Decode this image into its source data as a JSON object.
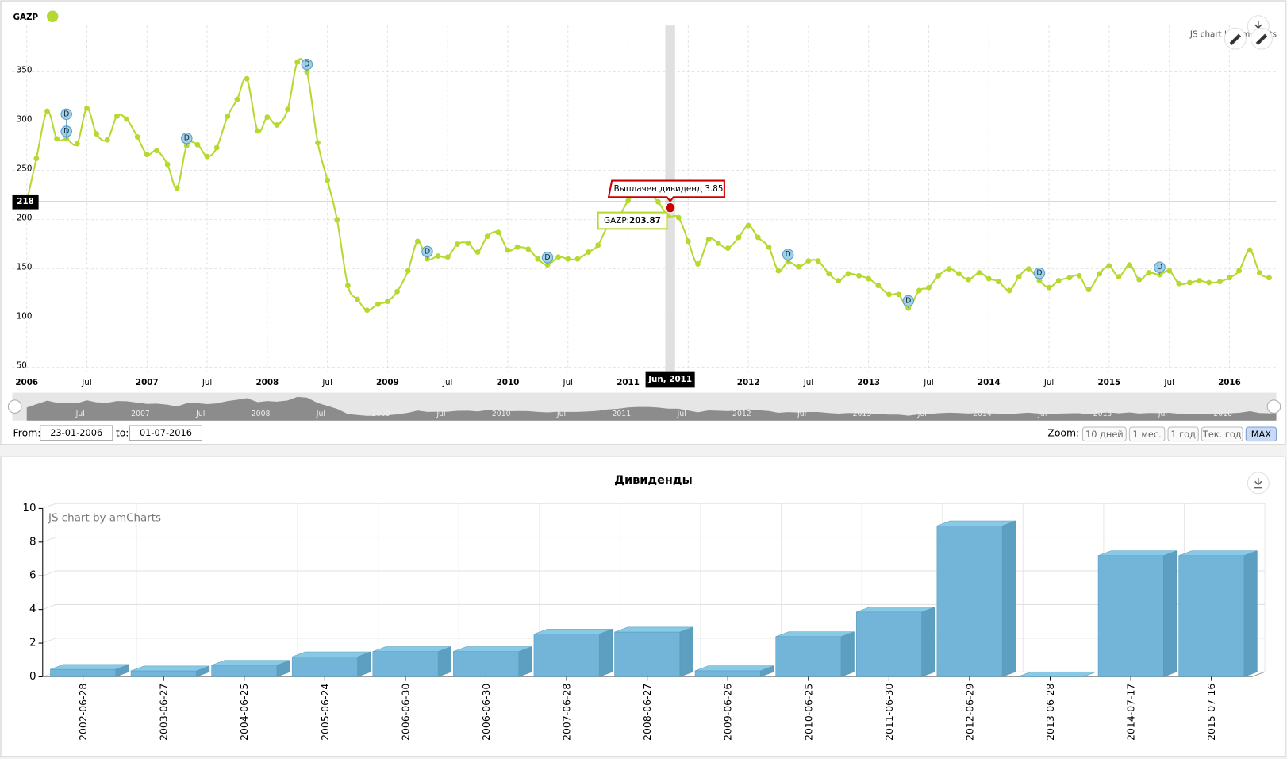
{
  "chart_data": [
    {
      "type": "line",
      "series": [
        {
          "name": "GAZP",
          "color": "#b5d930",
          "values": [
            218,
            262,
            310,
            282,
            282,
            277,
            313,
            287,
            281,
            305,
            302,
            284,
            266,
            270,
            256,
            232,
            275,
            276,
            264,
            273,
            305,
            322,
            343,
            290,
            304,
            296,
            312,
            360,
            350,
            278,
            240,
            200,
            133,
            119,
            108,
            114,
            117,
            127,
            148,
            178,
            160,
            163,
            162,
            175,
            176,
            167,
            183,
            187,
            169,
            172,
            170,
            160,
            154,
            162,
            160,
            160,
            167,
            174,
            193,
            202,
            219,
            226,
            226,
            218,
            203.87,
            202,
            178,
            155,
            180,
            176,
            171,
            182,
            194,
            182,
            172,
            148,
            157,
            152,
            158,
            158,
            145,
            138,
            145,
            143,
            140,
            133,
            124,
            124,
            110,
            128,
            131,
            143,
            150,
            145,
            139,
            146,
            140,
            137,
            128,
            142,
            150,
            138,
            131,
            138,
            141,
            143,
            129,
            145,
            153,
            142,
            154,
            139,
            146,
            144,
            148,
            135,
            136,
            138,
            136,
            137,
            141,
            148,
            169,
            146,
            141
          ]
        }
      ],
      "x": [
        2006,
        2006.08,
        2006.17,
        2006.25,
        2006.33,
        2006.42,
        2006.5,
        2006.58,
        2006.67,
        2006.75,
        2006.83,
        2006.92,
        2007,
        2007.08,
        2007.17,
        2007.25,
        2007.33,
        2007.42,
        2007.5,
        2007.58,
        2007.67,
        2007.75,
        2007.83,
        2007.92,
        2008,
        2008.08,
        2008.17,
        2008.25,
        2008.33,
        2008.42,
        2008.5,
        2008.58,
        2008.67,
        2008.75,
        2008.83,
        2008.92,
        2009,
        2009.08,
        2009.17,
        2009.25,
        2009.33,
        2009.42,
        2009.5,
        2009.58,
        2009.67,
        2009.75,
        2009.83,
        2009.92,
        2010,
        2010.08,
        2010.17,
        2010.25,
        2010.33,
        2010.42,
        2010.5,
        2010.58,
        2010.67,
        2010.75,
        2010.83,
        2010.92,
        2011,
        2011.08,
        2011.17,
        2011.25,
        2011.33,
        2011.42,
        2011.5,
        2011.58,
        2011.67,
        2011.75,
        2011.83,
        2011.92,
        2012,
        2012.08,
        2012.17,
        2012.25,
        2012.33,
        2012.42,
        2012.5,
        2012.58,
        2012.67,
        2012.75,
        2012.83,
        2012.92,
        2013,
        2013.08,
        2013.17,
        2013.25,
        2013.33,
        2013.42,
        2013.5,
        2013.58,
        2013.67,
        2013.75,
        2013.83,
        2013.92,
        2014,
        2014.08,
        2014.17,
        2014.25,
        2014.33,
        2014.42,
        2014.5,
        2014.58,
        2014.67,
        2014.75,
        2014.83,
        2014.92,
        2015,
        2015.08,
        2015.17,
        2015.25,
        2015.33,
        2015.42,
        2015.5,
        2015.58,
        2015.67,
        2015.75,
        2015.83,
        2015.92,
        2016,
        2016.08,
        2016.17,
        2016.25,
        2016.33
      ],
      "xlim": [
        2005.88,
        2016.39
      ],
      "ylim": [
        46,
        397
      ],
      "yticks": [
        50,
        100,
        150,
        200,
        250,
        300,
        350
      ],
      "xticks": [
        2006,
        {
          "value": 2006.5,
          "label": "Jul"
        },
        2007,
        {
          "value": 2007.5,
          "label": "Jul"
        },
        2008,
        {
          "value": 2008.5,
          "label": "Jul"
        },
        2009,
        {
          "value": 2009.5,
          "label": "Jul"
        },
        2010,
        {
          "value": 2010.5,
          "label": "Jul"
        },
        2011,
        {
          "value": 2011.5,
          "label": "Jul"
        },
        2012,
        {
          "value": 2012.5,
          "label": "Jul"
        },
        2013,
        {
          "value": 2013.5,
          "label": "Jul"
        },
        2014,
        {
          "value": 2014.5,
          "label": "Jul"
        },
        2015,
        {
          "value": 2015.5,
          "label": "Jul"
        },
        2016
      ],
      "grid": true,
      "guide": {
        "value": 218
      },
      "cursor": {
        "x": 2011.35,
        "label": "Jun, 2011"
      },
      "balloon": {
        "label": "GAZP:"
      },
      "events": [
        {
          "x": 2006.33,
          "label": "D"
        },
        {
          "x": 2006.33,
          "label": "D"
        },
        {
          "x": 2007.33,
          "label": "D"
        },
        {
          "x": 2008.33,
          "label": "D"
        },
        {
          "x": 2009.33,
          "label": "D"
        },
        {
          "x": 2010.33,
          "label": "D"
        },
        {
          "x": 2012.33,
          "label": "D"
        },
        {
          "x": 2013.33,
          "label": "D"
        },
        {
          "x": 2014.42,
          "label": "D"
        },
        {
          "x": 2015.42,
          "label": "D"
        }
      ],
      "event_balloon": {
        "x": 2011.35,
        "value": 212,
        "text": "Выплачен дивиденд 3.85",
        "color": "#cc0000"
      },
      "credit": "JS chart by amCharts"
    },
    {
      "type": "bar",
      "title": "Дивиденды",
      "categories": [
        "2002-06-28",
        "2003-06-27",
        "2004-06-25",
        "2005-06-24",
        "2006-06-30",
        "2006-06-30",
        "2007-06-28",
        "2008-06-27",
        "2009-06-26",
        "2010-06-25",
        "2011-06-30",
        "2012-06-29",
        "2013-06-28",
        "2014-07-17",
        "2015-07-16"
      ],
      "values": [
        0.44,
        0.35,
        0.69,
        1.19,
        1.5,
        1.5,
        2.54,
        2.66,
        0.36,
        2.39,
        3.85,
        8.97,
        0,
        7.2,
        7.2
      ],
      "color": "#72b5d8",
      "ylim": [
        0,
        10
      ],
      "yticks": [
        0,
        2,
        4,
        6,
        8,
        10
      ],
      "grid": true,
      "credit": "JS chart by amCharts"
    }
  ],
  "controls": {
    "from_label": "From:",
    "from": "23-01-2006",
    "to_label": "to:",
    "to": "01-07-2016",
    "zoom_label": "Zoom:",
    "zoom_buttons": [
      "10 дней",
      "1 мес.",
      "1 год",
      "Тек. год",
      "MAX"
    ],
    "zoom_active": 4
  }
}
